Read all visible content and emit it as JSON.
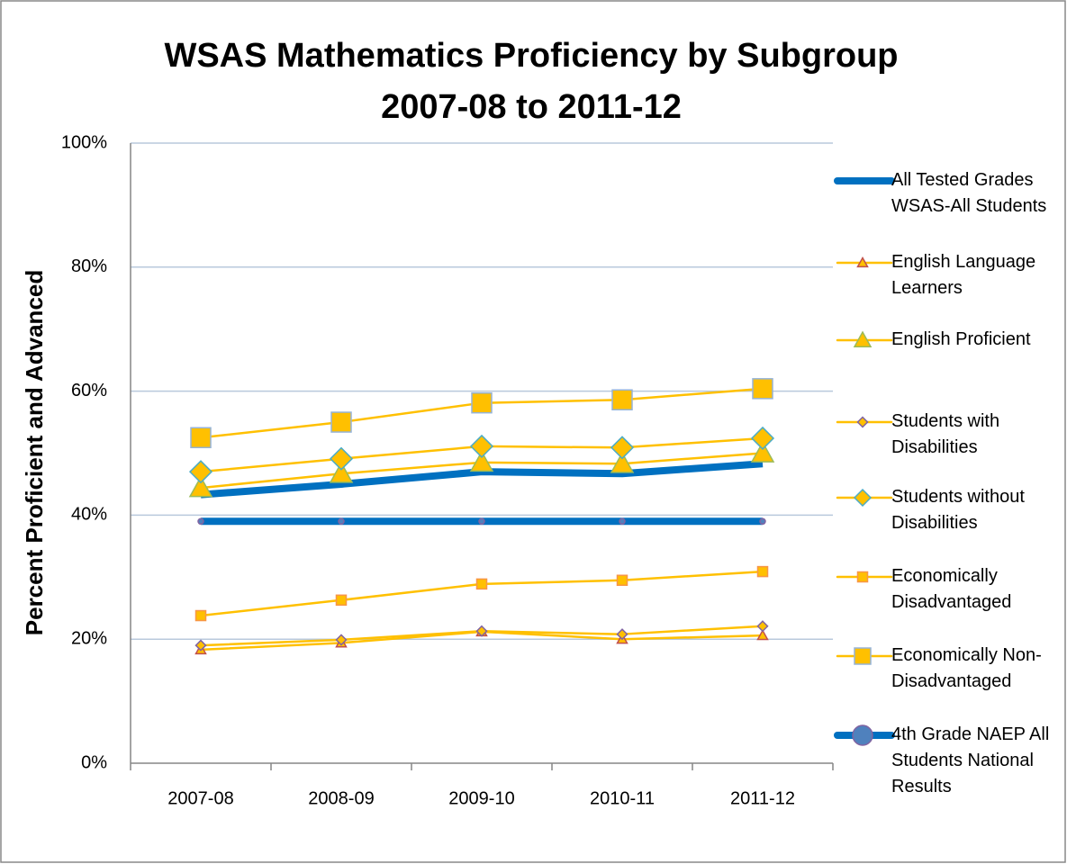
{
  "chart_data": {
    "type": "line",
    "title": [
      "WSAS Mathematics Proficiency by Subgroup",
      "2007-08 to 2011-12"
    ],
    "y_label": "Percent Proficient and Advanced",
    "categories": [
      "2007-08",
      "2008-09",
      "2009-10",
      "2010-11",
      "2011-12"
    ],
    "ylim": [
      0,
      100
    ],
    "yticks": [
      {
        "value": 0,
        "label": "0%"
      },
      {
        "value": 20,
        "label": "20%"
      },
      {
        "value": 40,
        "label": "40%"
      },
      {
        "value": 60,
        "label": "60%"
      },
      {
        "value": 80,
        "label": "80%"
      },
      {
        "value": 100,
        "label": "100%"
      }
    ],
    "grid": true,
    "legend": "right",
    "series": [
      {
        "name": "All Tested Grades WSAS-All Students",
        "color": "#0070c0",
        "width": 8,
        "marker": "none",
        "values": [
          43.3,
          45.0,
          47.0,
          46.7,
          48.3
        ]
      },
      {
        "name": "English Language Learners",
        "color": "#ffc000",
        "width": 2.5,
        "marker": "triangle",
        "marker_size": 11,
        "marker_edge": "#c0504d",
        "values": [
          18.3,
          19.4,
          21.2,
          20.0,
          20.6
        ]
      },
      {
        "name": "English Proficient",
        "color": "#ffc000",
        "width": 2.5,
        "marker": "triangle",
        "marker_size": 24,
        "marker_edge": "#9bbb59",
        "values": [
          44.4,
          46.7,
          48.5,
          48.3,
          50.0
        ]
      },
      {
        "name": "Students with Disabilities",
        "color": "#ffc000",
        "width": 2.5,
        "marker": "diamond",
        "marker_size": 11,
        "marker_edge": "#8064a2",
        "values": [
          19.0,
          19.9,
          21.3,
          20.8,
          22.1
        ]
      },
      {
        "name": "Students without Disabilities",
        "color": "#ffc000",
        "width": 2.5,
        "marker": "diamond",
        "marker_size": 24,
        "marker_edge": "#4bacc6",
        "values": [
          47.0,
          49.1,
          51.1,
          50.9,
          52.4
        ]
      },
      {
        "name": "Economically Disadvantaged",
        "color": "#ffc000",
        "width": 2.5,
        "marker": "square",
        "marker_size": 11,
        "marker_edge": "#f79646",
        "values": [
          23.8,
          26.3,
          28.9,
          29.5,
          30.9
        ]
      },
      {
        "name": "Economically Non-Disadvantaged",
        "color": "#ffc000",
        "width": 2.5,
        "marker": "square",
        "marker_size": 22,
        "marker_edge": "#95b3d7",
        "values": [
          52.5,
          55.0,
          58.1,
          58.6,
          60.4
        ]
      },
      {
        "name": "4th Grade NAEP All Students National Results",
        "color": "#0070c0",
        "width": 8,
        "marker": "circle",
        "marker_size": 6,
        "marker_edge": "#8064a2",
        "values": [
          39,
          39,
          39,
          39,
          39
        ]
      }
    ]
  }
}
